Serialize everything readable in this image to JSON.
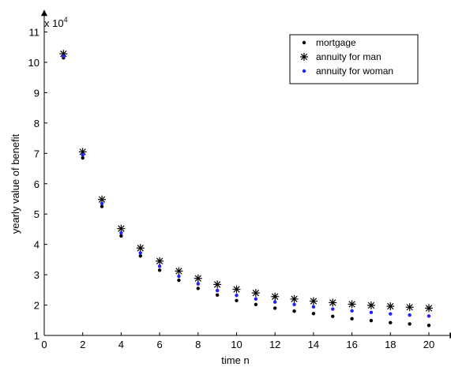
{
  "chart_data": {
    "type": "scatter",
    "title": "",
    "xlabel": "time n",
    "ylabel": "yearly value of benefit",
    "exponent_label": {
      "base": "x 10",
      "power": "4"
    },
    "xlim": [
      0,
      21
    ],
    "ylim": [
      1,
      11.5
    ],
    "xticks": [
      0,
      2,
      4,
      6,
      8,
      10,
      12,
      14,
      16,
      18,
      20
    ],
    "yticks": [
      1,
      2,
      3,
      4,
      5,
      6,
      7,
      8,
      9,
      10,
      11
    ],
    "grid": false,
    "legend_position": "top-right",
    "x": [
      1,
      2,
      3,
      4,
      5,
      6,
      7,
      8,
      9,
      10,
      11,
      12,
      13,
      14,
      15,
      16,
      17,
      18,
      19,
      20
    ],
    "series": [
      {
        "name": "mortgage",
        "marker": "dot",
        "color": "#000000",
        "values": [
          10.15,
          6.85,
          5.25,
          4.28,
          3.62,
          3.15,
          2.82,
          2.55,
          2.33,
          2.15,
          2.02,
          1.9,
          1.8,
          1.72,
          1.63,
          1.55,
          1.49,
          1.42,
          1.38,
          1.33
        ]
      },
      {
        "name": "annuity for man",
        "marker": "asterisk",
        "color": "#000000",
        "values": [
          10.28,
          7.05,
          5.48,
          4.52,
          3.88,
          3.45,
          3.12,
          2.88,
          2.68,
          2.52,
          2.4,
          2.28,
          2.2,
          2.13,
          2.08,
          2.03,
          1.99,
          1.96,
          1.93,
          1.9
        ]
      },
      {
        "name": "annuity for woman",
        "marker": "dot",
        "color": "#1f1fff",
        "values": [
          10.2,
          6.95,
          5.35,
          4.38,
          3.72,
          3.28,
          2.95,
          2.7,
          2.48,
          2.32,
          2.2,
          2.1,
          2.02,
          1.94,
          1.87,
          1.81,
          1.76,
          1.71,
          1.67,
          1.64
        ]
      }
    ]
  }
}
